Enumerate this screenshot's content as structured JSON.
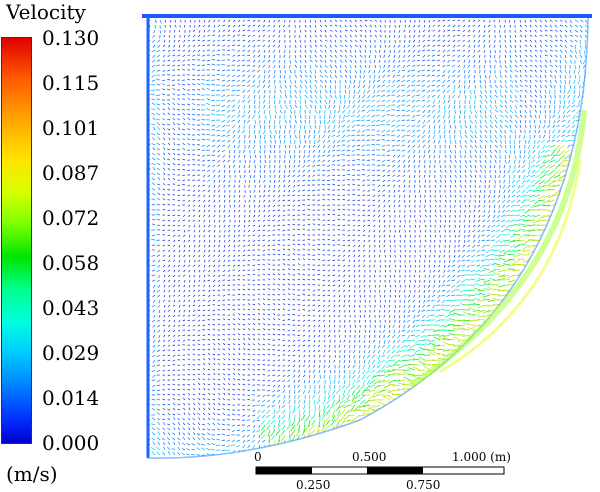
{
  "legend": {
    "title": "Velocity",
    "units": "(m/s)",
    "ticks": [
      "0.130",
      "0.115",
      "0.101",
      "0.087",
      "0.072",
      "0.058",
      "0.043",
      "0.029",
      "0.014",
      "0.000"
    ],
    "min": 0.0,
    "max": 0.13
  },
  "scale_bar": {
    "top_labels": [
      "0",
      "0.500",
      "1.000 (m)"
    ],
    "bottom_labels": [
      "0.250",
      "0.750"
    ]
  },
  "colors": {
    "low": "#0000d0",
    "mid_low": "#00c8ff",
    "mid": "#00e400",
    "high": "#ffe400",
    "max": "#e00000"
  },
  "image": {
    "subject": "velocity vector field in a quarter-circle domain"
  }
}
